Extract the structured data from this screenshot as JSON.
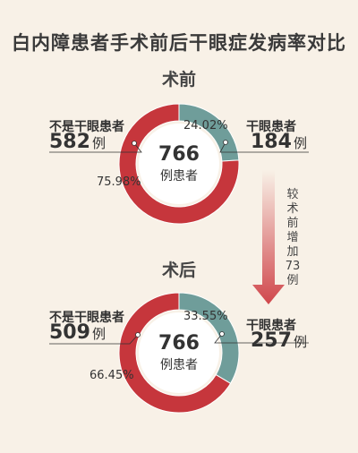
{
  "title": "白内障患者手术前后干眼症发病率对比",
  "colors": {
    "dry": "#6f9d9a",
    "nondry": "#c6363c",
    "background": "#f8f1e7"
  },
  "arrow_text": [
    "较",
    "术",
    "前",
    "增",
    "加",
    "73",
    "例"
  ],
  "chart_data": [
    {
      "type": "pie",
      "title": "术前",
      "center_value": "766",
      "center_label": "例患者",
      "slices": [
        {
          "label": "干眼患者",
          "count": "184",
          "unit": "例",
          "percent": 24.02,
          "percent_label": "24.02%"
        },
        {
          "label": "不是干眼患者",
          "count": "582",
          "unit": "例",
          "percent": 75.98,
          "percent_label": "75.98%"
        }
      ]
    },
    {
      "type": "pie",
      "title": "术后",
      "center_value": "766",
      "center_label": "例患者",
      "slices": [
        {
          "label": "干眼患者",
          "count": "257",
          "unit": "例",
          "percent": 33.55,
          "percent_label": "33.55%"
        },
        {
          "label": "不是干眼患者",
          "count": "509",
          "unit": "例",
          "percent": 66.45,
          "percent_label": "66.45%"
        }
      ]
    }
  ]
}
